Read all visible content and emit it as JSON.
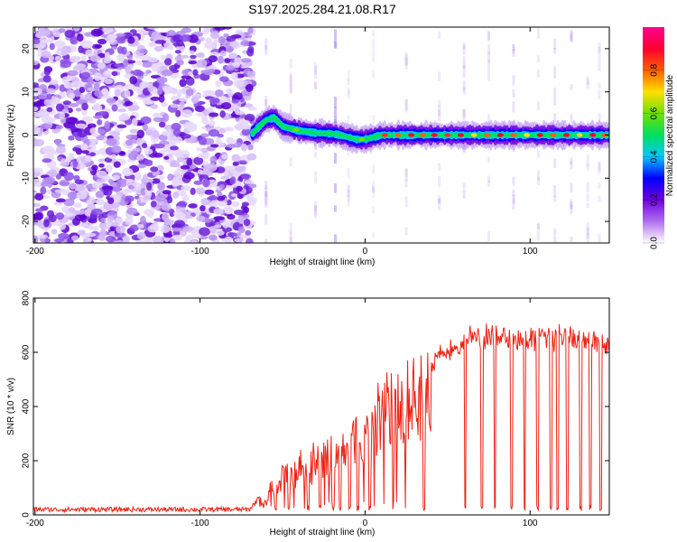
{
  "figure": {
    "title": "S197.2025.284.21.08.R17"
  },
  "chart_data": [
    {
      "type": "heatmap",
      "title": "S197.2025.284.21.08.R17",
      "xlabel": "Height of straight line (km)",
      "ylabel": "Frequency (Hz)",
      "xlim": [
        -201,
        148
      ],
      "ylim": [
        -25,
        25
      ],
      "x_ticks": [
        -200,
        -100,
        0,
        100
      ],
      "x_tick_labels": [
        "-200",
        "-100",
        "0",
        "100"
      ],
      "y_ticks": [
        -20,
        -10,
        0,
        10,
        20
      ],
      "y_tick_labels": [
        "-20",
        "-10",
        "0",
        "10",
        "20"
      ],
      "noise_region_x": [
        -201,
        -68
      ],
      "signal_track": {
        "x": [
          -68,
          -60,
          -55,
          -50,
          -40,
          -30,
          -20,
          -15,
          -10,
          -5,
          0,
          5,
          10,
          20,
          40,
          60,
          80,
          100,
          120,
          148
        ],
        "frequency": [
          0.5,
          3.5,
          4,
          2,
          1,
          0.5,
          0.3,
          0,
          -0.5,
          -1,
          -1,
          -0.5,
          0,
          0,
          0,
          0,
          0,
          0,
          0,
          0
        ]
      },
      "colorbar": {
        "label": "Normalized spectral amplitude",
        "range": [
          0,
          1
        ],
        "ticks": [
          0.0,
          0.2,
          0.4,
          0.6,
          0.8
        ],
        "tick_labels": [
          "0.0",
          "0.2",
          "0.4",
          "0.6",
          "0.8"
        ],
        "colors": [
          "#ffffff",
          "#b070f0",
          "#7000e0",
          "#0000ff",
          "#00c8ff",
          "#00e060",
          "#70e000",
          "#ffe000",
          "#ff6000",
          "#ff0030",
          "#ff0090"
        ]
      }
    },
    {
      "type": "line",
      "xlabel": "Height of straight line (km)",
      "ylabel": "SNR (10 * v/v)",
      "xlim": [
        -201,
        148
      ],
      "ylim": [
        0,
        800
      ],
      "x_ticks": [
        -200,
        -100,
        0,
        100
      ],
      "x_tick_labels": [
        "-200",
        "-100",
        "0",
        "100"
      ],
      "y_ticks": [
        0,
        200,
        400,
        600,
        800
      ],
      "y_tick_labels": [
        "0",
        "200",
        "400",
        "600",
        "800"
      ],
      "series": [
        {
          "name": "SNR",
          "color": "#f02010",
          "envelope": {
            "x": [
              -201,
              -150,
              -100,
              -70,
              -62,
              -55,
              -50,
              -40,
              -30,
              -20,
              -10,
              0,
              10,
              20,
              30,
              40,
              50,
              60,
              70,
              80,
              90,
              100,
              110,
              120,
              130,
              140,
              148
            ],
            "y": [
              20,
              20,
              20,
              20,
              80,
              150,
              180,
              230,
              270,
              310,
              350,
              410,
              500,
              560,
              580,
              600,
              650,
              690,
              700,
              700,
              690,
              690,
              690,
              700,
              690,
              680,
              680
            ]
          },
          "dropouts_x": [
            -55,
            -47,
            -35,
            -28,
            -20,
            -16,
            -10,
            -5,
            2,
            35,
            60,
            70,
            78,
            88,
            96,
            104,
            112,
            116,
            122,
            130,
            136,
            142
          ]
        }
      ]
    }
  ]
}
